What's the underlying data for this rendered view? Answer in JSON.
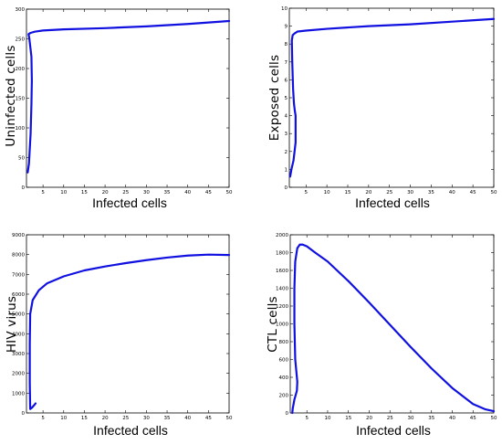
{
  "chart_data": [
    {
      "type": "line",
      "xlabel": "Infected cells",
      "ylabel": "Uninfected cells",
      "xlim": [
        1,
        50
      ],
      "ylim": [
        0,
        300
      ],
      "x_ticks": [
        5,
        10,
        15,
        20,
        25,
        30,
        35,
        40,
        45,
        50
      ],
      "y_ticks": [
        0,
        50,
        100,
        150,
        200,
        250,
        300
      ],
      "grid": false,
      "series": [
        {
          "x": [
            1.3,
            1.6,
            2.0,
            2.2,
            2.3,
            2.2,
            1.7,
            1.5,
            2.0,
            3.0,
            5.0,
            10,
            20,
            30,
            40,
            50
          ],
          "y": [
            25,
            40,
            90,
            140,
            180,
            220,
            250,
            258,
            260,
            262,
            264,
            266,
            268,
            271,
            275,
            280
          ]
        }
      ]
    },
    {
      "type": "line",
      "xlabel": "Infected cells",
      "ylabel": "Exposed cells",
      "xlim": [
        1,
        50
      ],
      "ylim": [
        0,
        10
      ],
      "x_ticks": [
        5,
        10,
        15,
        20,
        25,
        30,
        35,
        40,
        45,
        50
      ],
      "y_ticks": [
        0,
        1,
        2,
        3,
        4,
        5,
        6,
        7,
        8,
        9,
        10
      ],
      "grid": false,
      "series": [
        {
          "x": [
            1.2,
            1.5,
            2.0,
            2.5,
            2.5,
            2.3,
            2.1,
            1.9,
            1.7,
            1.6,
            1.8,
            2.3,
            3.0,
            5.0,
            10,
            20,
            30,
            40,
            50
          ],
          "y": [
            0.6,
            1.0,
            1.5,
            2.5,
            4.0,
            4.3,
            4.7,
            5.5,
            7.0,
            8.2,
            8.5,
            8.6,
            8.7,
            8.75,
            8.85,
            9.0,
            9.1,
            9.25,
            9.4
          ]
        }
      ]
    },
    {
      "type": "line",
      "xlabel": "Infected cells",
      "ylabel": "HIV virus",
      "xlim": [
        1,
        50
      ],
      "ylim": [
        0,
        9000
      ],
      "x_ticks": [
        5,
        10,
        15,
        20,
        25,
        30,
        35,
        40,
        45,
        50
      ],
      "y_ticks": [
        0,
        1000,
        2000,
        3000,
        4000,
        5000,
        6000,
        7000,
        8000,
        9000
      ],
      "grid": false,
      "series": [
        {
          "x": [
            3.2,
            2.8,
            2.3,
            1.9,
            1.8,
            1.8,
            1.9,
            2.5,
            4.0,
            6.0,
            10,
            15,
            20,
            25,
            30,
            35,
            40,
            45,
            50
          ],
          "y": [
            480,
            380,
            260,
            200,
            1500,
            3500,
            5000,
            5700,
            6200,
            6550,
            6900,
            7200,
            7400,
            7570,
            7720,
            7850,
            7950,
            8000,
            7980
          ]
        }
      ]
    },
    {
      "type": "line",
      "xlabel": "Infected cells",
      "ylabel": "CTL cells",
      "xlim": [
        1,
        50
      ],
      "ylim": [
        0,
        2000
      ],
      "x_ticks": [
        5,
        10,
        15,
        20,
        25,
        30,
        35,
        40,
        45,
        50
      ],
      "y_ticks": [
        0,
        200,
        400,
        600,
        800,
        1000,
        1200,
        1400,
        1600,
        1800,
        2000
      ],
      "grid": false,
      "series": [
        {
          "x": [
            1.5,
            1.6,
            2.0,
            2.6,
            2.7,
            2.6,
            2.2,
            2.0,
            2.0,
            2.2,
            2.7,
            3.3,
            4.0,
            5.0,
            7.0,
            10,
            15,
            20,
            25,
            30,
            35,
            40,
            45,
            48,
            50
          ],
          "y": [
            0,
            50,
            150,
            250,
            350,
            400,
            600,
            1000,
            1400,
            1700,
            1850,
            1890,
            1890,
            1870,
            1800,
            1700,
            1480,
            1240,
            990,
            740,
            500,
            280,
            100,
            40,
            20
          ]
        }
      ]
    }
  ]
}
